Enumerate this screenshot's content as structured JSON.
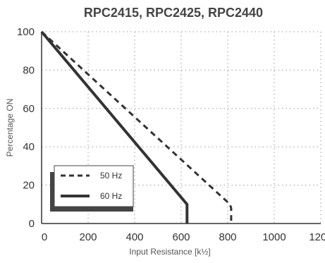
{
  "chart_data": {
    "type": "line",
    "title": "RPC2415, RPC2425, RPC2440",
    "xlabel": "Input Resistance  [k½]",
    "ylabel": "Percentage ON",
    "xlim": [
      0,
      1200
    ],
    "ylim": [
      0,
      100
    ],
    "x_ticks": [
      "0",
      "200",
      "400",
      "600",
      "800",
      "1000",
      "1200"
    ],
    "y_ticks": [
      "0",
      "20",
      "40",
      "60",
      "80",
      "100"
    ],
    "grid": true,
    "legend_position": "bottom-left",
    "series": [
      {
        "name": "50 Hz",
        "style": "dashed",
        "color": "#333333",
        "x": [
          0,
          810,
          815,
          815
        ],
        "y": [
          100,
          10,
          8,
          0
        ]
      },
      {
        "name": "60 Hz",
        "style": "solid",
        "color": "#333333",
        "x": [
          0,
          625,
          625
        ],
        "y": [
          100,
          10,
          0
        ]
      }
    ]
  }
}
